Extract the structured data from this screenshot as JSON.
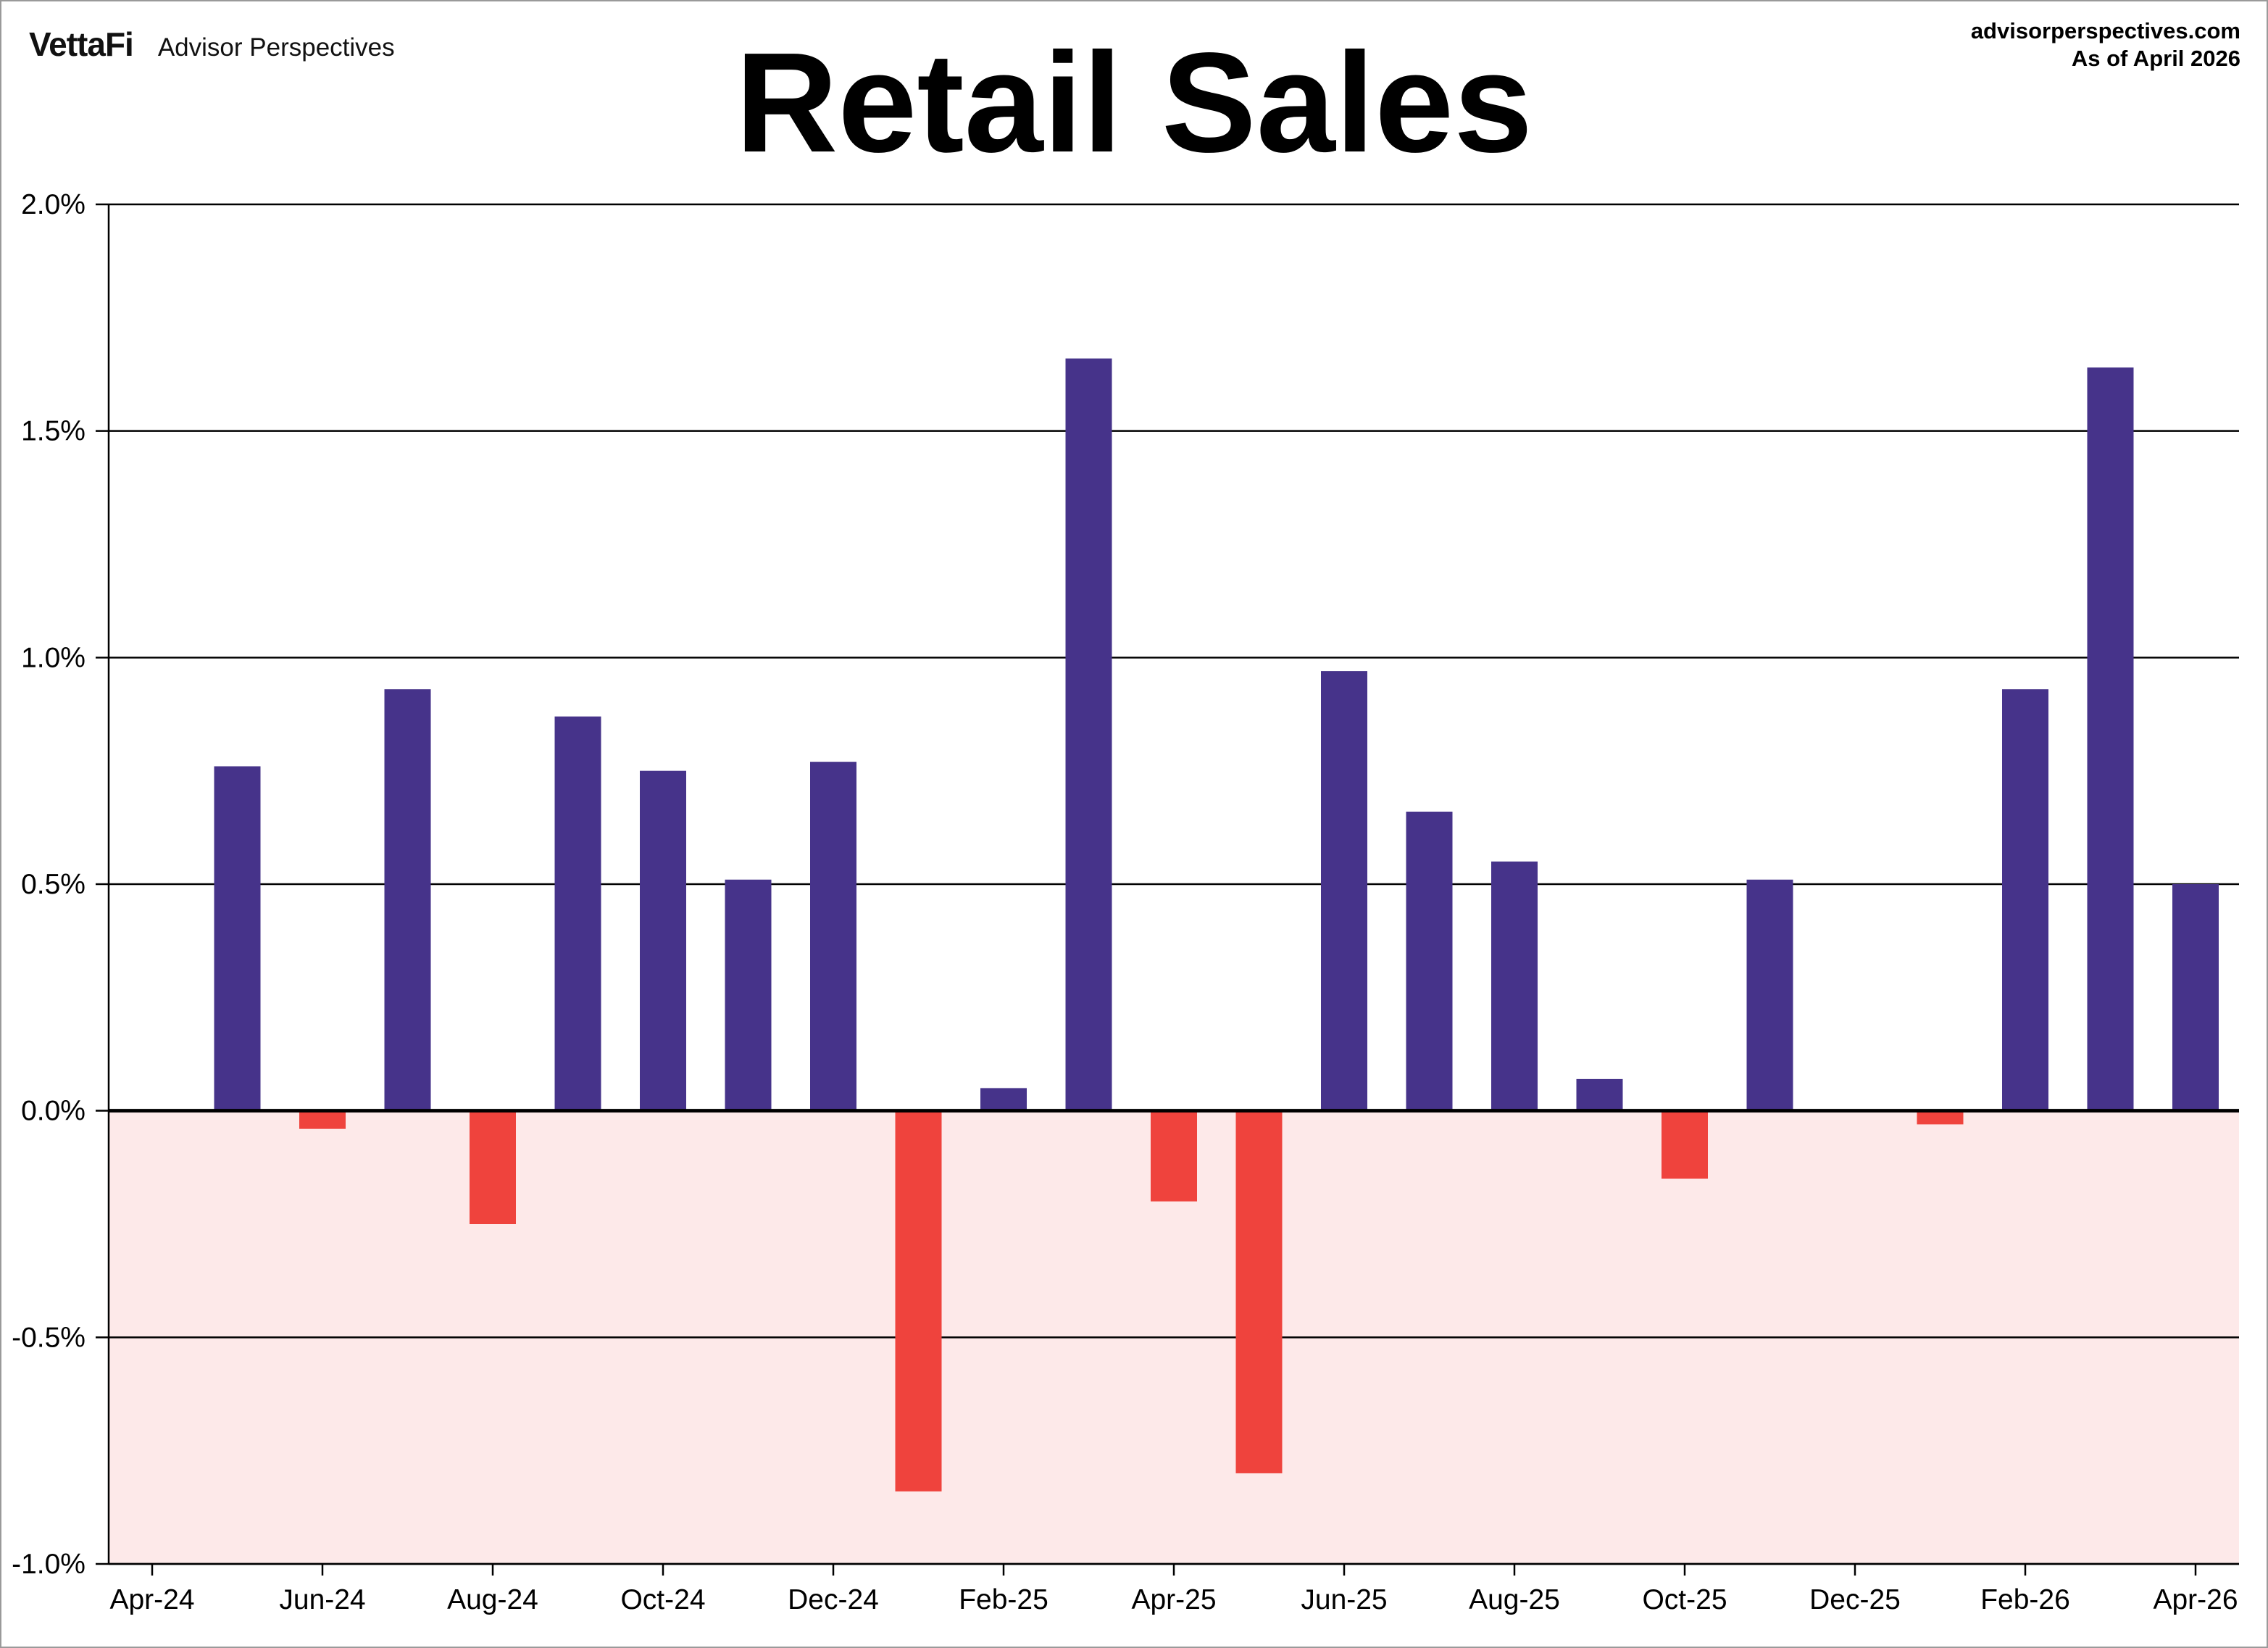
{
  "header": {
    "brand_logo": "VettaFi",
    "brand_name": "Advisor Perspectives",
    "site_url": "advisorperspectives.com",
    "as_of": "As of April 2026"
  },
  "colors": {
    "positive": "#46338a",
    "negative": "#ef433d",
    "negative_zone": "#fde9e9",
    "gridline": "#000000"
  },
  "chart_data": {
    "type": "bar",
    "title": "Retail Sales",
    "xlabel": "",
    "ylabel": "",
    "ylim": [
      -1.0,
      2.0
    ],
    "yticks": [
      2.0,
      1.5,
      1.0,
      0.5,
      0.0,
      -0.5,
      -1.0
    ],
    "ytick_labels": [
      "2.0%",
      "1.5%",
      "1.0%",
      "0.5%",
      "0.0%",
      "-0.5%",
      "-1.0%"
    ],
    "grid": true,
    "categories": [
      "Apr-24",
      "May-24",
      "Jun-24",
      "Jul-24",
      "Aug-24",
      "Sep-24",
      "Oct-24",
      "Nov-24",
      "Dec-24",
      "Jan-25",
      "Feb-25",
      "Mar-25",
      "Apr-25",
      "May-25",
      "Jun-25",
      "Jul-25",
      "Aug-25",
      "Sep-25",
      "Oct-25",
      "Nov-25",
      "Dec-25",
      "Jan-26",
      "Feb-26",
      "Mar-26",
      "Apr-26"
    ],
    "xtick_labels": [
      "Apr-24",
      "Jun-24",
      "Aug-24",
      "Oct-24",
      "Dec-24",
      "Feb-25",
      "Apr-25",
      "Jun-25",
      "Aug-25",
      "Oct-25",
      "Dec-25",
      "Feb-26",
      "Apr-26"
    ],
    "values": [
      null,
      0.76,
      -0.04,
      0.93,
      -0.25,
      0.87,
      0.75,
      0.51,
      0.77,
      -0.84,
      0.05,
      1.66,
      -0.2,
      -0.8,
      0.97,
      0.66,
      0.55,
      0.07,
      -0.15,
      0.51,
      null,
      -0.03,
      0.93,
      1.64,
      0.5
    ]
  }
}
